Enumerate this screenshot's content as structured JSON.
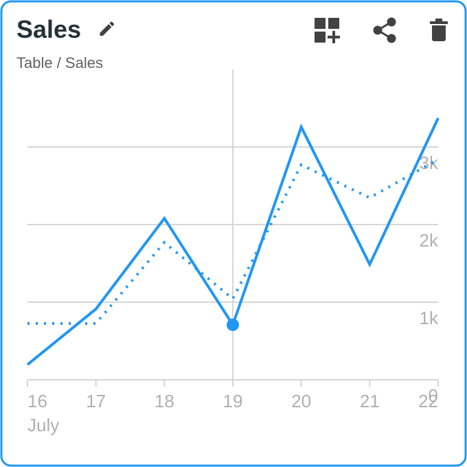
{
  "chart_data": {
    "type": "line",
    "title": "Sales",
    "subtitle": "Table / Sales",
    "categories": [
      "16",
      "17",
      "18",
      "19",
      "20",
      "21",
      "22"
    ],
    "x_group_label": "July",
    "series": [
      {
        "color": "#2196f3",
        "style": "solid",
        "values": [
          195,
          912,
          2080,
          708,
          3257,
          1487,
          3372
        ]
      },
      {
        "color": "#2196f3",
        "style": "dotted",
        "values": [
          726,
          726,
          1770,
          1044,
          2770,
          2345,
          2841
        ]
      }
    ],
    "highlight_index": 3,
    "ylim": [
      0,
      4000
    ],
    "yticks": [
      0,
      {
        "value": 1000,
        "label": "1k"
      },
      {
        "value": 2000,
        "label": "2k"
      },
      {
        "value": 3000,
        "label": "3k"
      }
    ],
    "grid": true
  }
}
